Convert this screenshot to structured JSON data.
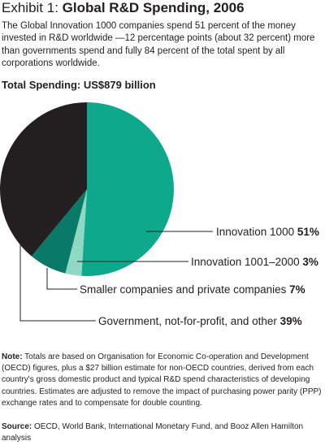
{
  "exhibit": {
    "label": "Exhibit 1:",
    "title": "Global R&D Spending, 2006"
  },
  "intro": "The Global Innovation 1000 companies spend 51 percent of the money invested in R&D worldwide —12 percentage points (about 32 percent) more than governments spend and fully 84 percent of the total spent by all corporations worldwide.",
  "total_spending": "Total Spending: US$879 billion",
  "chart_data": {
    "type": "pie",
    "title": "Total Spending: US$879 billion",
    "slices": [
      {
        "label": "Innovation 1000",
        "value": 51,
        "pct_label": "51%",
        "color": "#0ea88d"
      },
      {
        "label": "Innovation 1001–2000",
        "value": 3,
        "pct_label": "3%",
        "color": "#8ed8c4"
      },
      {
        "label": "Smaller companies and private companies",
        "value": 7,
        "pct_label": "7%",
        "color": "#0a7a68"
      },
      {
        "label": "Government, not-for-profit, and other",
        "value": 39,
        "pct_label": "39%",
        "color": "#231f20"
      }
    ]
  },
  "note": {
    "lead": "Note:",
    "text": "Totals are based on Organisation for Economic Co-operation and Development (OECD) figures, plus a $27 billion estimate for non-OECD countries, derived from each country's gross domestic product and typical R&D spend characteristics of developing countries. Estimates are adjusted to remove the impact of purchasing power parity (PPP) exchange rates and to compensate for double counting."
  },
  "source": {
    "lead": "Source:",
    "text": "OECD, World Bank, International Monetary Fund, and Booz Allen Hamilton analysis"
  }
}
